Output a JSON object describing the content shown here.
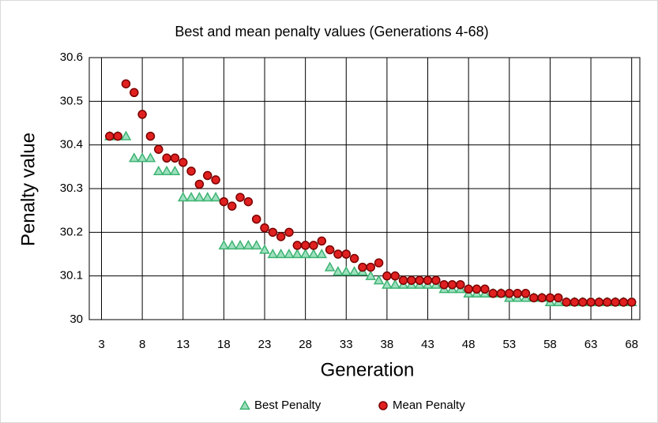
{
  "chart_data": {
    "type": "scatter",
    "title": "Best and mean penalty values (Generations 4-68)",
    "x_label": "Generation",
    "y_label": "Penalty value",
    "x": [
      4,
      5,
      6,
      7,
      8,
      9,
      10,
      11,
      12,
      13,
      14,
      15,
      16,
      17,
      18,
      19,
      20,
      21,
      22,
      23,
      24,
      25,
      26,
      27,
      28,
      29,
      30,
      31,
      32,
      33,
      34,
      35,
      36,
      37,
      38,
      39,
      40,
      41,
      42,
      43,
      44,
      45,
      46,
      47,
      48,
      49,
      50,
      51,
      52,
      53,
      54,
      55,
      56,
      57,
      58,
      59,
      60,
      61,
      62,
      63,
      64,
      65,
      66,
      67,
      68
    ],
    "series": [
      {
        "name": "Best Penalty",
        "color": "#3cb371",
        "marker": "triangle",
        "values": [
          30.42,
          30.42,
          30.42,
          30.37,
          30.37,
          30.37,
          30.34,
          30.34,
          30.34,
          30.28,
          30.28,
          30.28,
          30.28,
          30.28,
          30.17,
          30.17,
          30.17,
          30.17,
          30.17,
          30.16,
          30.15,
          30.15,
          30.15,
          30.15,
          30.15,
          30.15,
          30.15,
          30.12,
          30.11,
          30.11,
          30.11,
          30.11,
          30.1,
          30.09,
          30.08,
          30.08,
          30.08,
          30.08,
          30.08,
          30.08,
          30.08,
          30.07,
          30.07,
          30.07,
          30.06,
          30.06,
          30.06,
          30.06,
          30.06,
          30.05,
          30.05,
          30.05,
          30.05,
          30.05,
          30.04,
          30.04,
          30.04,
          30.04,
          30.04,
          30.04,
          30.04,
          30.04,
          30.04,
          30.04,
          30.04
        ]
      },
      {
        "name": "Mean Penalty",
        "color": "#e02020",
        "marker": "circle",
        "values": [
          30.42,
          30.42,
          30.54,
          30.52,
          30.47,
          30.42,
          30.39,
          30.37,
          30.37,
          30.36,
          30.34,
          30.31,
          30.33,
          30.32,
          30.27,
          30.26,
          30.28,
          30.27,
          30.23,
          30.21,
          30.2,
          30.19,
          30.2,
          30.17,
          30.17,
          30.17,
          30.18,
          30.16,
          30.15,
          30.15,
          30.14,
          30.12,
          30.12,
          30.13,
          30.1,
          30.1,
          30.09,
          30.09,
          30.09,
          30.09,
          30.09,
          30.08,
          30.08,
          30.08,
          30.07,
          30.07,
          30.07,
          30.06,
          30.06,
          30.06,
          30.06,
          30.06,
          30.05,
          30.05,
          30.05,
          30.05,
          30.04,
          30.04,
          30.04,
          30.04,
          30.04,
          30.04,
          30.04,
          30.04,
          30.04
        ]
      }
    ],
    "xlim": [
      1.5,
      69
    ],
    "xticks": [
      3,
      8,
      13,
      18,
      23,
      28,
      33,
      38,
      43,
      48,
      53,
      58,
      63,
      68
    ],
    "ylim": [
      30,
      30.6
    ],
    "yticks": [
      30,
      30.1,
      30.2,
      30.3,
      30.4,
      30.5,
      30.6
    ],
    "grid": true,
    "legend": "bottom"
  }
}
